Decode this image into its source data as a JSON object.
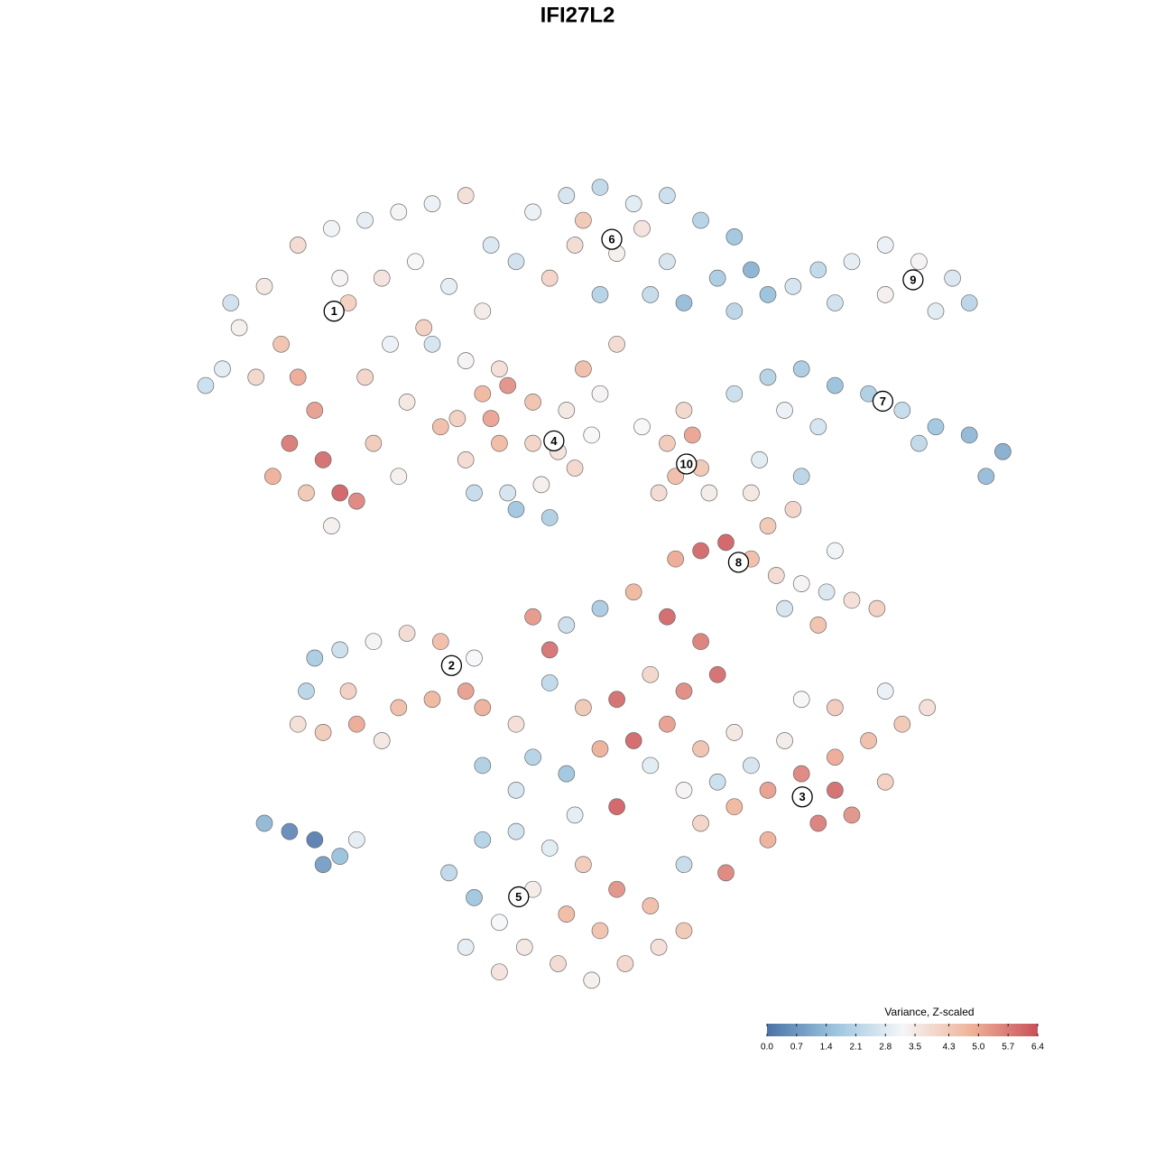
{
  "chart_data": {
    "type": "scatter",
    "title": "IFI27L2",
    "xlim": [
      0,
      100
    ],
    "ylim": [
      0,
      100
    ],
    "colorscale": [
      "#4a72a8",
      "#9cc4de",
      "#f4f6f8",
      "#f0b49b",
      "#c9505a"
    ],
    "points": [
      {
        "x": 5,
        "y": 75,
        "value": 2.8
      },
      {
        "x": 3,
        "y": 73,
        "value": 2.4
      },
      {
        "x": 7,
        "y": 80,
        "value": 3.4
      },
      {
        "x": 10,
        "y": 85,
        "value": 3.6
      },
      {
        "x": 14,
        "y": 90,
        "value": 3.9
      },
      {
        "x": 18,
        "y": 92,
        "value": 3.1
      },
      {
        "x": 22,
        "y": 93,
        "value": 2.9
      },
      {
        "x": 26,
        "y": 94,
        "value": 3.3
      },
      {
        "x": 30,
        "y": 95,
        "value": 3.0
      },
      {
        "x": 34,
        "y": 96,
        "value": 3.8
      },
      {
        "x": 12,
        "y": 78,
        "value": 4.5
      },
      {
        "x": 14,
        "y": 74,
        "value": 5.0
      },
      {
        "x": 16,
        "y": 70,
        "value": 5.2
      },
      {
        "x": 13,
        "y": 66,
        "value": 5.8
      },
      {
        "x": 17,
        "y": 64,
        "value": 6.0
      },
      {
        "x": 19,
        "y": 60,
        "value": 6.2
      },
      {
        "x": 21,
        "y": 59,
        "value": 5.6
      },
      {
        "x": 11,
        "y": 62,
        "value": 4.9
      },
      {
        "x": 15,
        "y": 60,
        "value": 4.4
      },
      {
        "x": 18,
        "y": 56,
        "value": 3.4
      },
      {
        "x": 20,
        "y": 83,
        "value": 4.2
      },
      {
        "x": 24,
        "y": 86,
        "value": 3.7
      },
      {
        "x": 28,
        "y": 88,
        "value": 3.2
      },
      {
        "x": 32,
        "y": 85,
        "value": 2.9
      },
      {
        "x": 36,
        "y": 82,
        "value": 3.5
      },
      {
        "x": 25,
        "y": 78,
        "value": 3.0
      },
      {
        "x": 30,
        "y": 78,
        "value": 2.6
      },
      {
        "x": 34,
        "y": 76,
        "value": 3.3
      },
      {
        "x": 22,
        "y": 74,
        "value": 4.1
      },
      {
        "x": 27,
        "y": 71,
        "value": 3.6
      },
      {
        "x": 6,
        "y": 83,
        "value": 2.5
      },
      {
        "x": 9,
        "y": 74,
        "value": 4.0
      },
      {
        "x": 23,
        "y": 66,
        "value": 4.3
      },
      {
        "x": 26,
        "y": 62,
        "value": 3.4
      },
      {
        "x": 31,
        "y": 68,
        "value": 4.6
      },
      {
        "x": 37,
        "y": 90,
        "value": 2.7
      },
      {
        "x": 40,
        "y": 88,
        "value": 2.5
      },
      {
        "x": 38,
        "y": 75,
        "value": 3.8
      },
      {
        "x": 29,
        "y": 80,
        "value": 4.2
      },
      {
        "x": 19,
        "y": 86,
        "value": 3.3
      },
      {
        "x": 42,
        "y": 94,
        "value": 3.0
      },
      {
        "x": 46,
        "y": 96,
        "value": 2.6
      },
      {
        "x": 50,
        "y": 97,
        "value": 2.2
      },
      {
        "x": 54,
        "y": 95,
        "value": 2.8
      },
      {
        "x": 58,
        "y": 96,
        "value": 2.4
      },
      {
        "x": 62,
        "y": 93,
        "value": 2.0
      },
      {
        "x": 66,
        "y": 91,
        "value": 1.6
      },
      {
        "x": 68,
        "y": 87,
        "value": 1.2
      },
      {
        "x": 64,
        "y": 86,
        "value": 1.8
      },
      {
        "x": 58,
        "y": 88,
        "value": 2.6
      },
      {
        "x": 52,
        "y": 89,
        "value": 3.4
      },
      {
        "x": 47,
        "y": 90,
        "value": 3.9
      },
      {
        "x": 44,
        "y": 86,
        "value": 4.1
      },
      {
        "x": 50,
        "y": 84,
        "value": 2.0
      },
      {
        "x": 56,
        "y": 84,
        "value": 2.3
      },
      {
        "x": 60,
        "y": 83,
        "value": 1.4
      },
      {
        "x": 70,
        "y": 84,
        "value": 1.5
      },
      {
        "x": 66,
        "y": 82,
        "value": 2.1
      },
      {
        "x": 55,
        "y": 92,
        "value": 3.7
      },
      {
        "x": 48,
        "y": 93,
        "value": 4.4
      },
      {
        "x": 73,
        "y": 85,
        "value": 2.6
      },
      {
        "x": 76,
        "y": 87,
        "value": 2.2
      },
      {
        "x": 80,
        "y": 88,
        "value": 2.9
      },
      {
        "x": 84,
        "y": 90,
        "value": 3.0
      },
      {
        "x": 88,
        "y": 88,
        "value": 3.3
      },
      {
        "x": 92,
        "y": 86,
        "value": 2.7
      },
      {
        "x": 94,
        "y": 83,
        "value": 2.1
      },
      {
        "x": 90,
        "y": 82,
        "value": 2.8
      },
      {
        "x": 84,
        "y": 84,
        "value": 3.4
      },
      {
        "x": 78,
        "y": 83,
        "value": 2.5
      },
      {
        "x": 66,
        "y": 72,
        "value": 2.4
      },
      {
        "x": 70,
        "y": 74,
        "value": 2.0
      },
      {
        "x": 74,
        "y": 75,
        "value": 1.8
      },
      {
        "x": 78,
        "y": 73,
        "value": 1.5
      },
      {
        "x": 82,
        "y": 72,
        "value": 1.9
      },
      {
        "x": 86,
        "y": 70,
        "value": 2.3
      },
      {
        "x": 90,
        "y": 68,
        "value": 1.6
      },
      {
        "x": 94,
        "y": 67,
        "value": 1.3
      },
      {
        "x": 98,
        "y": 65,
        "value": 1.1
      },
      {
        "x": 96,
        "y": 62,
        "value": 1.4
      },
      {
        "x": 88,
        "y": 66,
        "value": 2.2
      },
      {
        "x": 72,
        "y": 70,
        "value": 3.0
      },
      {
        "x": 76,
        "y": 68,
        "value": 2.6
      },
      {
        "x": 69,
        "y": 64,
        "value": 2.8
      },
      {
        "x": 74,
        "y": 62,
        "value": 2.1
      },
      {
        "x": 33,
        "y": 69,
        "value": 4.2
      },
      {
        "x": 36,
        "y": 72,
        "value": 4.8
      },
      {
        "x": 39,
        "y": 73,
        "value": 5.4
      },
      {
        "x": 42,
        "y": 71,
        "value": 4.5
      },
      {
        "x": 46,
        "y": 70,
        "value": 3.6
      },
      {
        "x": 49,
        "y": 67,
        "value": 3.2
      },
      {
        "x": 47,
        "y": 63,
        "value": 4.0
      },
      {
        "x": 43,
        "y": 61,
        "value": 3.4
      },
      {
        "x": 39,
        "y": 60,
        "value": 2.6
      },
      {
        "x": 35,
        "y": 60,
        "value": 2.3
      },
      {
        "x": 34,
        "y": 64,
        "value": 3.9
      },
      {
        "x": 38,
        "y": 66,
        "value": 4.7
      },
      {
        "x": 42,
        "y": 66,
        "value": 4.1
      },
      {
        "x": 45,
        "y": 65,
        "value": 3.7
      },
      {
        "x": 40,
        "y": 58,
        "value": 1.6
      },
      {
        "x": 44,
        "y": 57,
        "value": 1.9
      },
      {
        "x": 48,
        "y": 75,
        "value": 4.6
      },
      {
        "x": 52,
        "y": 78,
        "value": 3.9
      },
      {
        "x": 50,
        "y": 72,
        "value": 3.3
      },
      {
        "x": 37,
        "y": 69,
        "value": 5.1
      },
      {
        "x": 58,
        "y": 66,
        "value": 4.3
      },
      {
        "x": 61,
        "y": 67,
        "value": 5.1
      },
      {
        "x": 62,
        "y": 63,
        "value": 4.4
      },
      {
        "x": 59,
        "y": 62,
        "value": 4.6
      },
      {
        "x": 57,
        "y": 60,
        "value": 3.9
      },
      {
        "x": 63,
        "y": 60,
        "value": 3.5
      },
      {
        "x": 60,
        "y": 70,
        "value": 4.0
      },
      {
        "x": 55,
        "y": 68,
        "value": 3.2
      },
      {
        "x": 59,
        "y": 52,
        "value": 5.0
      },
      {
        "x": 62,
        "y": 53,
        "value": 6.1
      },
      {
        "x": 65,
        "y": 54,
        "value": 6.2
      },
      {
        "x": 68,
        "y": 52,
        "value": 4.6
      },
      {
        "x": 71,
        "y": 50,
        "value": 3.9
      },
      {
        "x": 74,
        "y": 49,
        "value": 3.3
      },
      {
        "x": 77,
        "y": 48,
        "value": 2.7
      },
      {
        "x": 80,
        "y": 47,
        "value": 3.8
      },
      {
        "x": 83,
        "y": 46,
        "value": 4.2
      },
      {
        "x": 76,
        "y": 44,
        "value": 4.5
      },
      {
        "x": 70,
        "y": 56,
        "value": 4.4
      },
      {
        "x": 73,
        "y": 58,
        "value": 4.1
      },
      {
        "x": 68,
        "y": 60,
        "value": 3.6
      },
      {
        "x": 78,
        "y": 53,
        "value": 3.1
      },
      {
        "x": 72,
        "y": 46,
        "value": 2.6
      },
      {
        "x": 16,
        "y": 40,
        "value": 1.8
      },
      {
        "x": 19,
        "y": 41,
        "value": 2.4
      },
      {
        "x": 23,
        "y": 42,
        "value": 3.3
      },
      {
        "x": 27,
        "y": 43,
        "value": 3.9
      },
      {
        "x": 31,
        "y": 42,
        "value": 4.6
      },
      {
        "x": 35,
        "y": 40,
        "value": 3.2
      },
      {
        "x": 34,
        "y": 36,
        "value": 5.2
      },
      {
        "x": 30,
        "y": 35,
        "value": 4.8
      },
      {
        "x": 26,
        "y": 34,
        "value": 4.6
      },
      {
        "x": 21,
        "y": 32,
        "value": 5.0
      },
      {
        "x": 17,
        "y": 31,
        "value": 4.3
      },
      {
        "x": 14,
        "y": 32,
        "value": 3.8
      },
      {
        "x": 20,
        "y": 36,
        "value": 4.2
      },
      {
        "x": 24,
        "y": 30,
        "value": 3.6
      },
      {
        "x": 15,
        "y": 36,
        "value": 2.1
      },
      {
        "x": 36,
        "y": 34,
        "value": 4.9
      },
      {
        "x": 10,
        "y": 20,
        "value": 1.3
      },
      {
        "x": 13,
        "y": 19,
        "value": 0.4
      },
      {
        "x": 16,
        "y": 18,
        "value": 0.2
      },
      {
        "x": 17,
        "y": 15,
        "value": 0.8
      },
      {
        "x": 19,
        "y": 16,
        "value": 1.5
      },
      {
        "x": 21,
        "y": 18,
        "value": 2.9
      },
      {
        "x": 42,
        "y": 45,
        "value": 5.3
      },
      {
        "x": 46,
        "y": 44,
        "value": 2.4
      },
      {
        "x": 50,
        "y": 46,
        "value": 1.8
      },
      {
        "x": 54,
        "y": 48,
        "value": 4.8
      },
      {
        "x": 58,
        "y": 45,
        "value": 6.1
      },
      {
        "x": 62,
        "y": 42,
        "value": 5.7
      },
      {
        "x": 64,
        "y": 38,
        "value": 6.0
      },
      {
        "x": 60,
        "y": 36,
        "value": 5.5
      },
      {
        "x": 56,
        "y": 38,
        "value": 4.0
      },
      {
        "x": 52,
        "y": 35,
        "value": 6.0
      },
      {
        "x": 48,
        "y": 34,
        "value": 4.4
      },
      {
        "x": 44,
        "y": 37,
        "value": 2.2
      },
      {
        "x": 40,
        "y": 32,
        "value": 3.8
      },
      {
        "x": 42,
        "y": 28,
        "value": 2.0
      },
      {
        "x": 46,
        "y": 26,
        "value": 1.6
      },
      {
        "x": 50,
        "y": 29,
        "value": 4.9
      },
      {
        "x": 54,
        "y": 30,
        "value": 6.1
      },
      {
        "x": 58,
        "y": 32,
        "value": 5.2
      },
      {
        "x": 62,
        "y": 29,
        "value": 4.5
      },
      {
        "x": 66,
        "y": 31,
        "value": 3.6
      },
      {
        "x": 64,
        "y": 25,
        "value": 2.4
      },
      {
        "x": 60,
        "y": 24,
        "value": 3.3
      },
      {
        "x": 52,
        "y": 22,
        "value": 6.2
      },
      {
        "x": 47,
        "y": 21,
        "value": 2.9
      },
      {
        "x": 40,
        "y": 24,
        "value": 2.6
      },
      {
        "x": 36,
        "y": 27,
        "value": 1.9
      },
      {
        "x": 56,
        "y": 27,
        "value": 2.8
      },
      {
        "x": 44,
        "y": 41,
        "value": 5.9
      },
      {
        "x": 62,
        "y": 20,
        "value": 4.1
      },
      {
        "x": 66,
        "y": 22,
        "value": 4.8
      },
      {
        "x": 70,
        "y": 24,
        "value": 5.2
      },
      {
        "x": 74,
        "y": 26,
        "value": 5.6
      },
      {
        "x": 78,
        "y": 28,
        "value": 5.0
      },
      {
        "x": 82,
        "y": 30,
        "value": 4.6
      },
      {
        "x": 86,
        "y": 32,
        "value": 4.4
      },
      {
        "x": 89,
        "y": 34,
        "value": 3.8
      },
      {
        "x": 84,
        "y": 36,
        "value": 3.0
      },
      {
        "x": 78,
        "y": 34,
        "value": 4.3
      },
      {
        "x": 72,
        "y": 30,
        "value": 3.5
      },
      {
        "x": 68,
        "y": 27,
        "value": 2.6
      },
      {
        "x": 76,
        "y": 20,
        "value": 5.7
      },
      {
        "x": 80,
        "y": 21,
        "value": 5.4
      },
      {
        "x": 70,
        "y": 18,
        "value": 4.9
      },
      {
        "x": 65,
        "y": 14,
        "value": 5.6
      },
      {
        "x": 78,
        "y": 24,
        "value": 6.0
      },
      {
        "x": 84,
        "y": 25,
        "value": 4.2
      },
      {
        "x": 74,
        "y": 35,
        "value": 3.2
      },
      {
        "x": 60,
        "y": 15,
        "value": 2.3
      },
      {
        "x": 32,
        "y": 14,
        "value": 2.2
      },
      {
        "x": 35,
        "y": 11,
        "value": 1.6
      },
      {
        "x": 38,
        "y": 8,
        "value": 3.2
      },
      {
        "x": 41,
        "y": 5,
        "value": 3.6
      },
      {
        "x": 45,
        "y": 3,
        "value": 3.9
      },
      {
        "x": 49,
        "y": 1,
        "value": 3.4
      },
      {
        "x": 53,
        "y": 3,
        "value": 4.0
      },
      {
        "x": 57,
        "y": 5,
        "value": 3.8
      },
      {
        "x": 60,
        "y": 7,
        "value": 4.4
      },
      {
        "x": 56,
        "y": 10,
        "value": 4.6
      },
      {
        "x": 52,
        "y": 12,
        "value": 5.4
      },
      {
        "x": 48,
        "y": 15,
        "value": 4.3
      },
      {
        "x": 44,
        "y": 17,
        "value": 2.8
      },
      {
        "x": 40,
        "y": 19,
        "value": 2.5
      },
      {
        "x": 36,
        "y": 18,
        "value": 2.0
      },
      {
        "x": 46,
        "y": 9,
        "value": 4.7
      },
      {
        "x": 42,
        "y": 12,
        "value": 3.5
      },
      {
        "x": 50,
        "y": 7,
        "value": 4.5
      },
      {
        "x": 34,
        "y": 5,
        "value": 2.9
      },
      {
        "x": 38,
        "y": 2,
        "value": 3.7
      }
    ],
    "annotations": [
      {
        "label": "1",
        "x": 18.3,
        "y": 82
      },
      {
        "label": "2",
        "x": 32.3,
        "y": 39.1
      },
      {
        "label": "3",
        "x": 74.1,
        "y": 23.2
      },
      {
        "label": "4",
        "x": 44.5,
        "y": 66.3
      },
      {
        "label": "5",
        "x": 40.3,
        "y": 11.1
      },
      {
        "label": "6",
        "x": 51.4,
        "y": 90.7
      },
      {
        "label": "7",
        "x": 83.7,
        "y": 71.1
      },
      {
        "label": "8",
        "x": 66.5,
        "y": 51.6
      },
      {
        "label": "9",
        "x": 87.3,
        "y": 85.8
      },
      {
        "label": "10",
        "x": 60.3,
        "y": 63.5
      }
    ],
    "colorbar": {
      "title": "Variance, Z-scaled",
      "lim": [
        0,
        6.4
      ],
      "ticks": [
        {
          "value": 0,
          "label": "0.0"
        },
        0.7,
        1.4,
        2.1,
        2.8,
        3.5,
        4.3,
        {
          "value": 5,
          "label": "5.0"
        },
        5.7,
        6.4
      ]
    }
  }
}
